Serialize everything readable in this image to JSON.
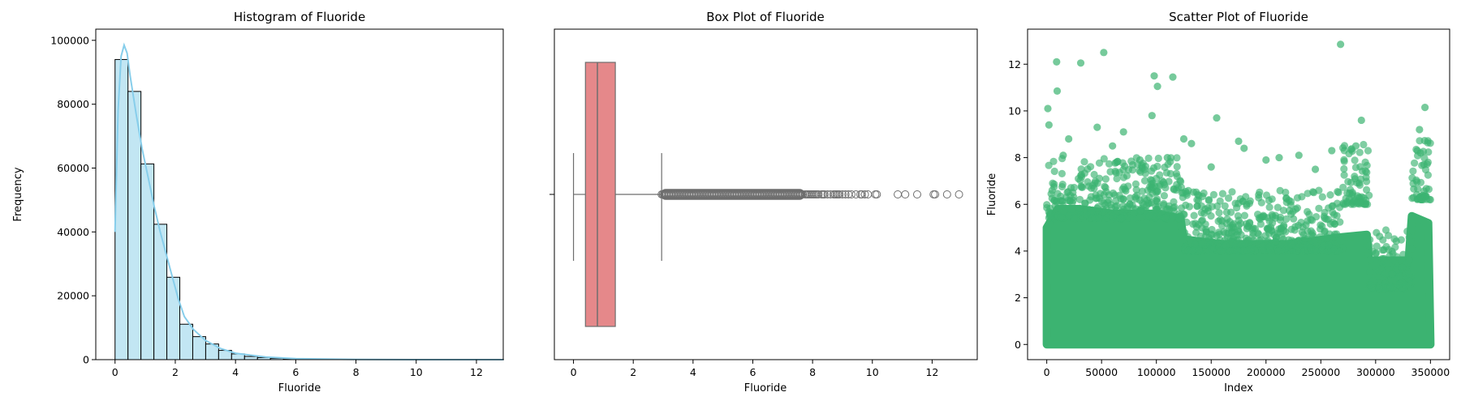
{
  "chart_data": [
    {
      "type": "bar",
      "subtype": "histogram",
      "title": "Histogram of Fluoride",
      "xlabel": "Fluoride",
      "ylabel": "Frequency",
      "xlim": [
        -0.64,
        12.89
      ],
      "ylim": [
        0,
        103500
      ],
      "xticks": [
        0,
        2,
        4,
        6,
        8,
        10,
        12
      ],
      "yticks": [
        0,
        20000,
        40000,
        60000,
        80000,
        100000
      ],
      "bin_width": 0.43,
      "bin_start": 0,
      "values": [
        94000,
        84000,
        61300,
        42400,
        25800,
        11100,
        7200,
        4900,
        2900,
        1800,
        1000,
        650,
        400,
        280,
        190,
        130,
        90,
        60,
        40,
        30,
        20,
        15,
        10,
        8,
        6,
        5,
        4,
        3,
        3,
        2
      ],
      "kde": {
        "x": [
          0,
          0.1,
          0.2,
          0.3,
          0.4,
          0.5,
          0.7,
          0.9,
          1.1,
          1.3,
          1.5,
          1.7,
          1.9,
          2.1,
          2.3,
          2.6,
          3.0,
          3.5,
          4.0,
          5.0,
          6.0,
          8.0,
          10.0,
          12.9
        ],
        "y": [
          40000,
          78000,
          95000,
          98500,
          96000,
          89000,
          77000,
          66000,
          57000,
          48000,
          40000,
          33000,
          26000,
          19000,
          13500,
          9500,
          6000,
          3500,
          2000,
          800,
          300,
          60,
          10,
          0
        ]
      },
      "colors": {
        "bar": "#c2e6f3",
        "edge": "#000000",
        "kde": "#87ceeb"
      }
    },
    {
      "type": "box",
      "title": "Box Plot of Fluoride",
      "xlabel": "Fluoride",
      "xlim": [
        -0.64,
        13.51
      ],
      "xticks": [
        0,
        2,
        4,
        6,
        8,
        10,
        12
      ],
      "box": {
        "whisker_low": 0.0,
        "q1": 0.4,
        "median": 0.8,
        "q3": 1.4,
        "whisker_high": 2.95
      },
      "outlier_range": [
        2.95,
        7.7
      ],
      "outliers": [
        7.75,
        7.8,
        7.85,
        7.9,
        7.95,
        8.0,
        8.05,
        8.1,
        8.15,
        8.2,
        8.3,
        8.35,
        8.4,
        8.5,
        8.6,
        8.7,
        8.75,
        8.8,
        8.85,
        8.9,
        9.0,
        9.1,
        9.2,
        9.3,
        9.45,
        9.6,
        9.65,
        9.75,
        9.85,
        10.1,
        10.15,
        10.85,
        11.1,
        11.5,
        12.05,
        12.1,
        12.5,
        12.9
      ],
      "colors": {
        "box": "#e5888a",
        "line": "#6e6e6e"
      }
    },
    {
      "type": "scatter",
      "title": "Scatter Plot of Fluoride",
      "xlabel": "Index",
      "ylabel": "Fluoride",
      "xlim": [
        -17500,
        367500
      ],
      "ylim": [
        -0.65,
        13.5
      ],
      "xticks": [
        0,
        50000,
        100000,
        150000,
        200000,
        250000,
        300000,
        350000
      ],
      "yticks": [
        0,
        2,
        4,
        6,
        8,
        10,
        12
      ],
      "n_points": 350000,
      "notable_points": [
        [
          268000,
          12.85
        ],
        [
          52000,
          12.5
        ],
        [
          9000,
          12.1
        ],
        [
          31000,
          12.05
        ],
        [
          98000,
          11.5
        ],
        [
          115000,
          11.45
        ],
        [
          101000,
          11.05
        ],
        [
          9500,
          10.85
        ],
        [
          345000,
          10.15
        ],
        [
          1000,
          10.1
        ],
        [
          96000,
          9.8
        ],
        [
          287000,
          9.6
        ],
        [
          340000,
          9.2
        ],
        [
          2000,
          9.4
        ],
        [
          46000,
          9.3
        ],
        [
          70000,
          9.1
        ],
        [
          155000,
          9.7
        ],
        [
          175000,
          8.7
        ],
        [
          20000,
          8.8
        ],
        [
          60000,
          8.5
        ],
        [
          132000,
          8.6
        ],
        [
          200000,
          7.9
        ],
        [
          230000,
          8.1
        ],
        [
          260000,
          8.3
        ],
        [
          282000,
          8.5
        ],
        [
          338000,
          8.3
        ],
        [
          341000,
          8.2
        ],
        [
          344000,
          7.7
        ],
        [
          110000,
          8.0
        ],
        [
          150000,
          7.6
        ],
        [
          180000,
          8.4
        ],
        [
          212000,
          8.0
        ],
        [
          245000,
          7.5
        ],
        [
          15000,
          8.1
        ],
        [
          85000,
          7.9
        ],
        [
          125000,
          8.8
        ]
      ],
      "colors": {
        "point": "#3cb371"
      }
    }
  ]
}
